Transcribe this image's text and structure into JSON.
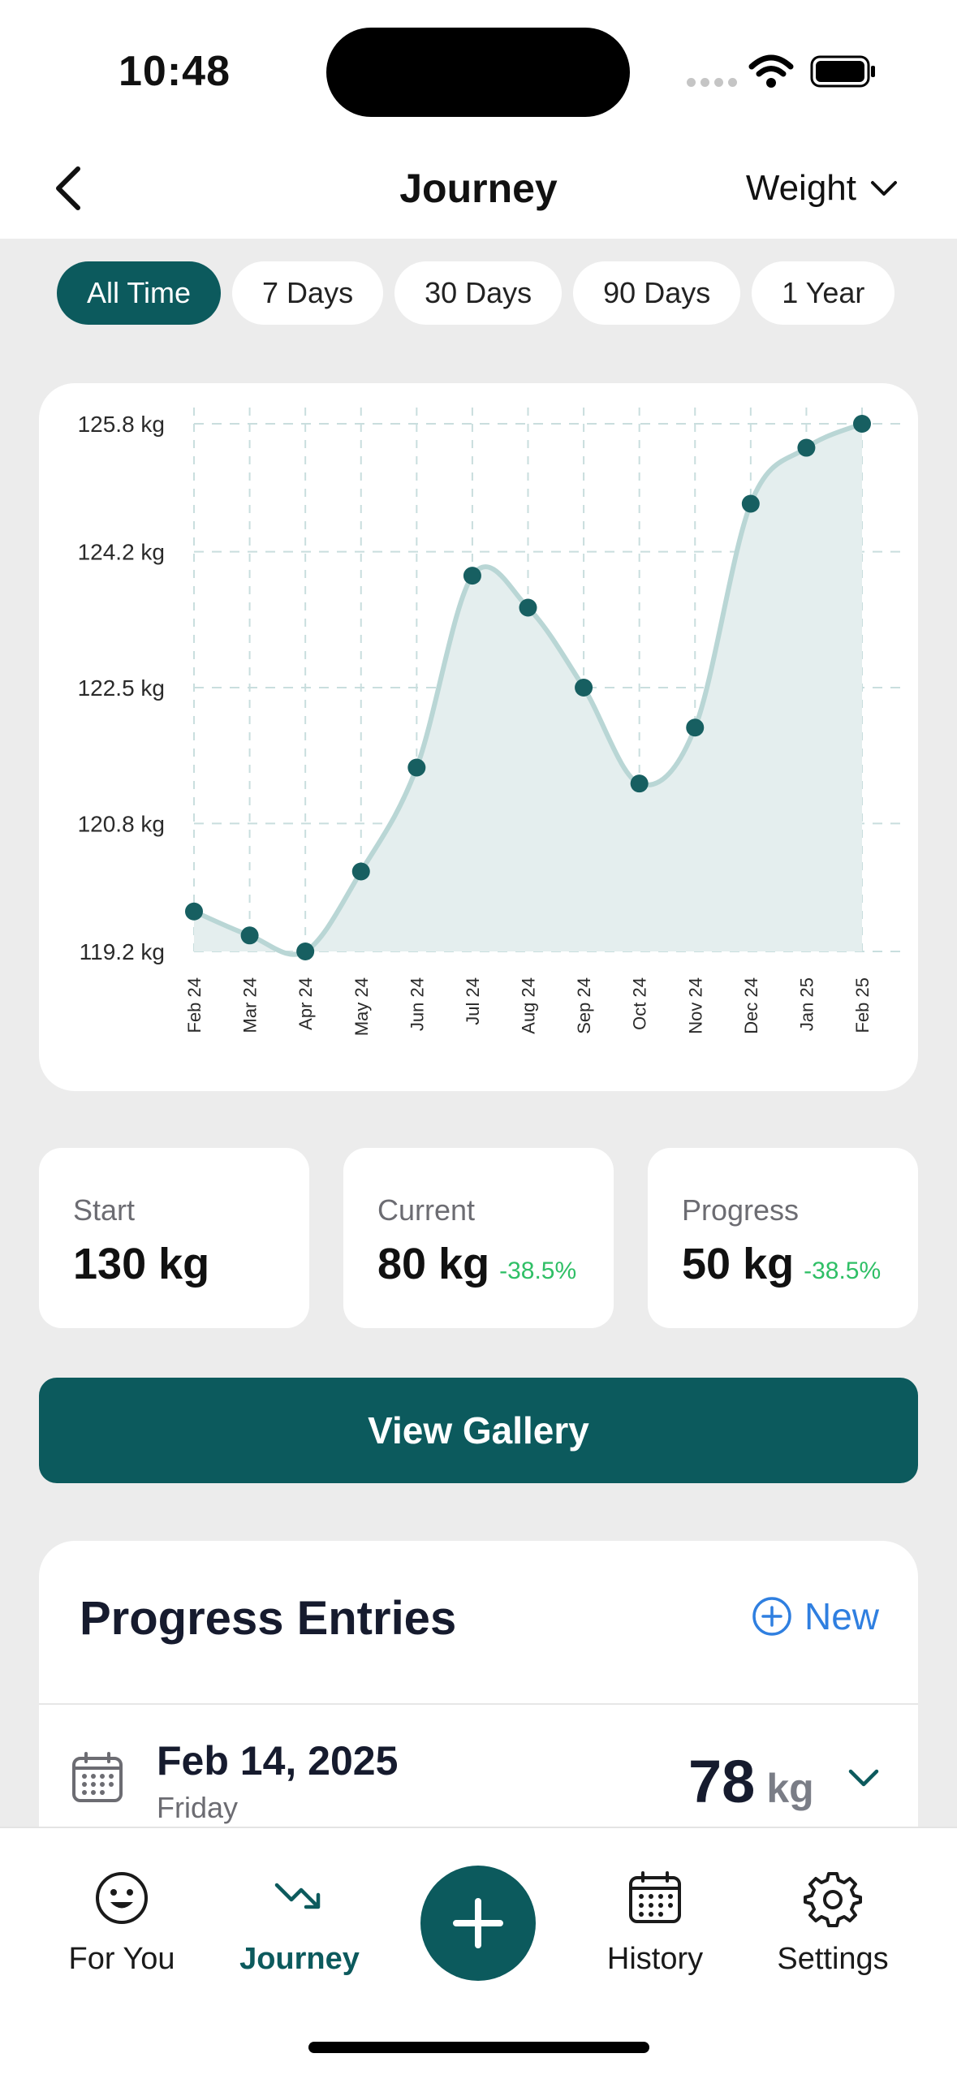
{
  "status_bar": {
    "time": "10:48"
  },
  "header": {
    "title": "Journey",
    "metric_selector": "Weight",
    "back_icon": "chevron-left-icon",
    "dropdown_icon": "chevron-down-icon"
  },
  "range_filters": [
    {
      "label": "All Time",
      "active": true
    },
    {
      "label": "7 Days",
      "active": false
    },
    {
      "label": "30 Days",
      "active": false
    },
    {
      "label": "90 Days",
      "active": false
    },
    {
      "label": "1 Year",
      "active": false
    }
  ],
  "chart_data": {
    "type": "area",
    "x": [
      "Feb 24",
      "Mar 24",
      "Apr 24",
      "May 24",
      "Jun 24",
      "Jul 24",
      "Aug 24",
      "Sep 24",
      "Oct 24",
      "Nov 24",
      "Dec 24",
      "Jan 25",
      "Feb 25"
    ],
    "values": [
      119.7,
      119.4,
      119.2,
      120.2,
      121.5,
      123.9,
      123.5,
      122.5,
      121.3,
      122.0,
      124.8,
      125.5,
      125.8
    ],
    "y_ticks": [
      "125.8 kg",
      "124.2 kg",
      "122.5 kg",
      "120.8 kg",
      "119.2 kg"
    ],
    "y_tick_values": [
      125.8,
      124.2,
      122.5,
      120.8,
      119.2
    ],
    "ylim": [
      119.2,
      125.8
    ],
    "grid": true,
    "colors": {
      "line": "#b9d6d5",
      "fill": "#e4eeee",
      "point": "#175f61",
      "grid": "#c9dede"
    }
  },
  "stats": [
    {
      "label": "Start",
      "value": "130 kg",
      "change": ""
    },
    {
      "label": "Current",
      "value": "80 kg",
      "change": "-38.5%"
    },
    {
      "label": "Progress",
      "value": "50 kg",
      "change": "-38.5%"
    }
  ],
  "gallery_button": {
    "label": "View Gallery"
  },
  "entries": {
    "title": "Progress Entries",
    "new_label": "New",
    "items": [
      {
        "date": "Feb 14, 2025",
        "day": "Friday",
        "value": "78",
        "unit": "kg"
      }
    ]
  },
  "tabbar": {
    "items": [
      {
        "label": "For You",
        "icon": "smiley-icon",
        "active": false
      },
      {
        "label": "Journey",
        "icon": "trend-down-icon",
        "active": true
      },
      {
        "label": "History",
        "icon": "calendar-icon",
        "active": false
      },
      {
        "label": "Settings",
        "icon": "gear-icon",
        "active": false
      }
    ],
    "add_icon": "plus-icon"
  },
  "theme": {
    "accent": "#0c5a5d",
    "link": "#2f7fe0",
    "positive": "#2fbf66"
  }
}
